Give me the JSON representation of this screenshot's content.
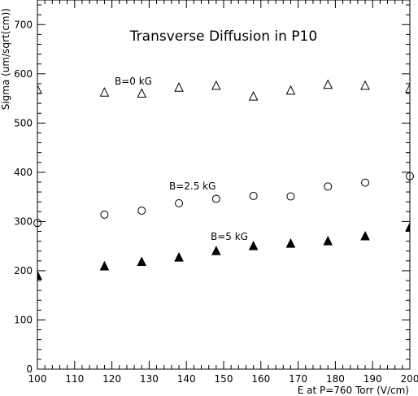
{
  "chart_data": {
    "type": "scatter",
    "title": "Transverse Diffusion in P10",
    "xlabel": "E at P=760 Torr (V/cm)",
    "ylabel": "Sigma (um/sqrt(cm))",
    "xlim": [
      100,
      200
    ],
    "ylim": [
      0,
      750
    ],
    "xticks": [
      100,
      110,
      120,
      130,
      140,
      150,
      160,
      170,
      180,
      190,
      200
    ],
    "yticks": [
      0,
      100,
      200,
      300,
      400,
      500,
      600,
      700
    ],
    "grid": false,
    "series": [
      {
        "name": "B=0 kG",
        "marker": "open-triangle",
        "x": [
          100,
          118,
          128,
          138,
          148,
          158,
          168,
          178,
          188,
          200
        ],
        "y": [
          568,
          562,
          560,
          572,
          576,
          554,
          566,
          578,
          576,
          570
        ]
      },
      {
        "name": "B=2.5 kG",
        "marker": "open-circle",
        "x": [
          100,
          118,
          128,
          138,
          148,
          158,
          168,
          178,
          188,
          200
        ],
        "y": [
          297,
          314,
          322,
          337,
          346,
          352,
          351,
          371,
          379,
          392
        ]
      },
      {
        "name": "B=5 kG",
        "marker": "filled-triangle",
        "x": [
          100,
          118,
          128,
          138,
          148,
          158,
          168,
          178,
          188,
          200
        ],
        "y": [
          190,
          209,
          218,
          227,
          240,
          250,
          255,
          260,
          270,
          288
        ]
      }
    ]
  }
}
